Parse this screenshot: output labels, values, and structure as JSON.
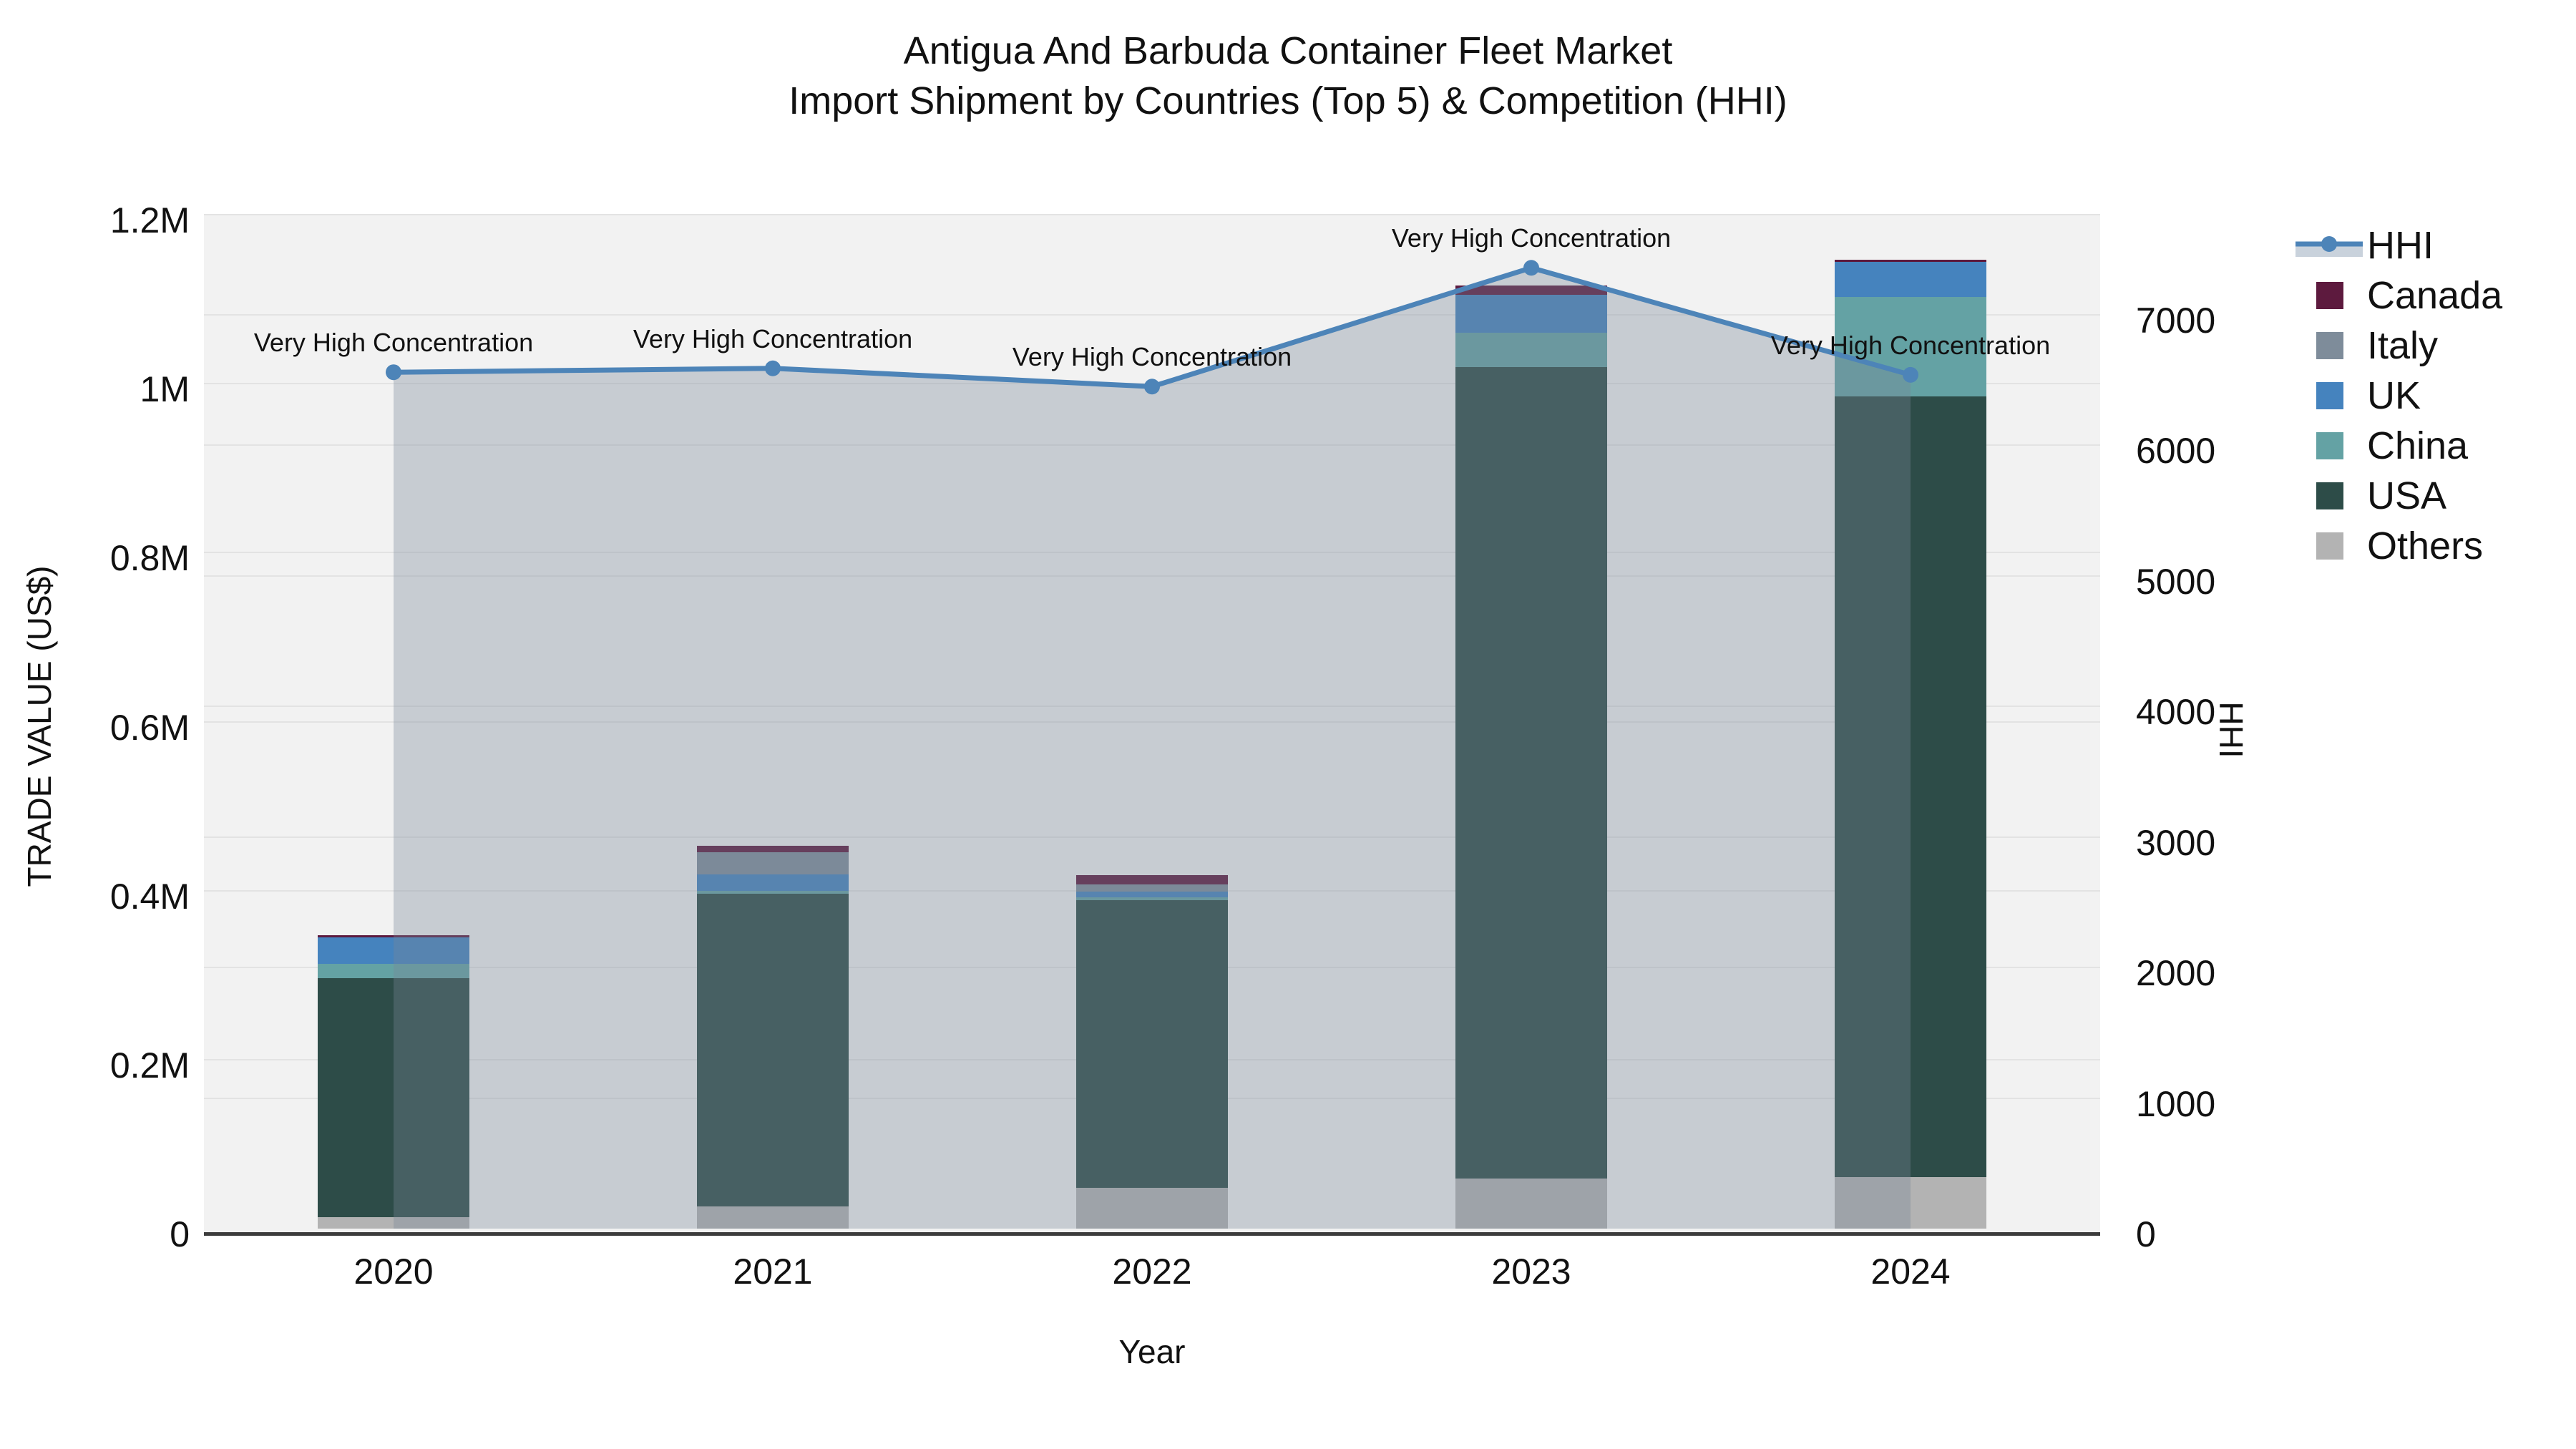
{
  "title": {
    "line1": "Antigua And Barbuda Container Fleet Market",
    "line2": "Import Shipment by Countries (Top 5) & Competition (HHI)"
  },
  "axes": {
    "x": {
      "title": "Year",
      "categories": [
        "2020",
        "2021",
        "2022",
        "2023",
        "2024"
      ]
    },
    "y_left": {
      "title": "TRADE VALUE (US$)",
      "ticks": [
        {
          "value": 0,
          "label": "0"
        },
        {
          "value": 200000,
          "label": "0.2M"
        },
        {
          "value": 400000,
          "label": "0.4M"
        },
        {
          "value": 600000,
          "label": "0.6M"
        },
        {
          "value": 800000,
          "label": "0.8M"
        },
        {
          "value": 1000000,
          "label": "1M"
        },
        {
          "value": 1200000,
          "label": "1.2M"
        }
      ],
      "range": [
        0,
        1200000
      ]
    },
    "y_right": {
      "title": "HHI",
      "ticks": [
        {
          "value": 0,
          "label": "0"
        },
        {
          "value": 1000,
          "label": "1000"
        },
        {
          "value": 2000,
          "label": "2000"
        },
        {
          "value": 3000,
          "label": "3000"
        },
        {
          "value": 4000,
          "label": "4000"
        },
        {
          "value": 5000,
          "label": "5000"
        },
        {
          "value": 6000,
          "label": "6000"
        },
        {
          "value": 7000,
          "label": "7000"
        }
      ],
      "range": [
        0,
        7767
      ]
    }
  },
  "legend": {
    "items": [
      {
        "label": "HHI",
        "type": "line",
        "color": "#4D84B8",
        "fill": "#C9D2DC"
      },
      {
        "label": "Canada",
        "type": "square",
        "color": "#5D1A3E"
      },
      {
        "label": "Italy",
        "type": "square",
        "color": "#7E8C9A"
      },
      {
        "label": "UK",
        "type": "square",
        "color": "#4583BE"
      },
      {
        "label": "China",
        "type": "square",
        "color": "#64A2A4"
      },
      {
        "label": "USA",
        "type": "square",
        "color": "#2D4C48"
      },
      {
        "label": "Others",
        "type": "square",
        "color": "#B3B3B3"
      }
    ]
  },
  "annotations": [
    {
      "year": "2020",
      "text": "Very High Concentration"
    },
    {
      "year": "2021",
      "text": "Very High Concentration"
    },
    {
      "year": "2022",
      "text": "Very High Concentration"
    },
    {
      "year": "2023",
      "text": "Very High Concentration"
    },
    {
      "year": "2024",
      "text": "Very High Concentration"
    }
  ],
  "chart_data": {
    "type": "bar",
    "subtype": "stacked bars (left axis) + line with area fill (right axis)",
    "title": "Antigua And Barbuda Container Fleet Market — Import Shipment by Countries (Top 5) & Competition (HHI)",
    "xlabel": "Year",
    "ylabel": "TRADE VALUE (US$)",
    "ylabel_right": "HHI",
    "categories": [
      "2020",
      "2021",
      "2022",
      "2023",
      "2024"
    ],
    "series": [
      {
        "name": "Canada",
        "color": "#5D1A3E",
        "values": [
          2500,
          7500,
          11000,
          11000,
          2500
        ]
      },
      {
        "name": "Italy",
        "color": "#7E8C9A",
        "values": [
          0,
          26000,
          8500,
          0,
          0
        ]
      },
      {
        "name": "UK",
        "color": "#4583BE",
        "values": [
          31000,
          19500,
          6000,
          45000,
          41500
        ]
      },
      {
        "name": "China",
        "color": "#64A2A4",
        "values": [
          17000,
          3500,
          4000,
          40000,
          118500
        ]
      },
      {
        "name": "USA",
        "color": "#2D4C48",
        "values": [
          283000,
          370500,
          340500,
          961000,
          923500
        ]
      },
      {
        "name": "Others",
        "color": "#B3B3B3",
        "values": [
          13500,
          26000,
          48000,
          59000,
          61000
        ]
      }
    ],
    "stack_totals": [
      347000,
      453000,
      418000,
      1116000,
      1147000
    ],
    "stack_order_bottom_to_top": [
      "Others",
      "USA",
      "China",
      "UK",
      "Italy",
      "Canada"
    ],
    "line_series": {
      "name": "HHI",
      "axis": "right",
      "color": "#4D84B8",
      "area_fill": "rgba(119,136,153,0.35)",
      "values": [
        6560,
        6590,
        6450,
        7360,
        6540
      ]
    },
    "ylim_left": [
      0,
      1200000
    ],
    "ylim_right": [
      0,
      7767
    ],
    "grid": true,
    "legend_position": "right",
    "point_annotation_text": "Very High Concentration"
  }
}
